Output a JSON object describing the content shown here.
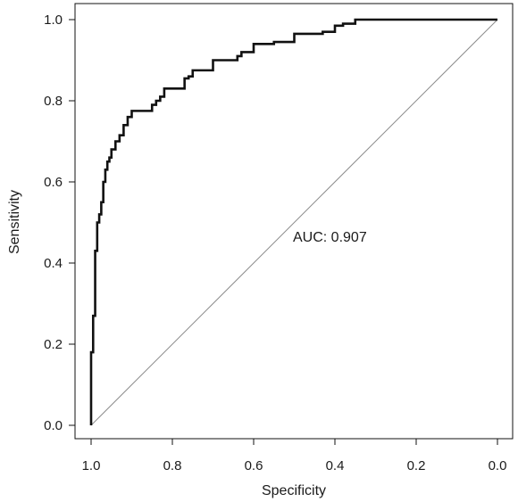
{
  "chart_data": {
    "type": "line",
    "xlabel": "Specificity",
    "ylabel": "Sensitivity",
    "xlim": [
      1.0,
      0.0
    ],
    "ylim": [
      0.0,
      1.0
    ],
    "x_ticks": [
      "1.0",
      "0.8",
      "0.6",
      "0.4",
      "0.2",
      "0.0"
    ],
    "y_ticks": [
      "0.0",
      "0.2",
      "0.4",
      "0.6",
      "0.8",
      "1.0"
    ],
    "grid": false,
    "legend": "none",
    "annotation": "AUC: 0.907",
    "reference_line": {
      "x": [
        1.0,
        0.0
      ],
      "y": [
        0.0,
        1.0
      ],
      "color": "#8c8c8c"
    },
    "series": [
      {
        "color": "#111111",
        "x": [
          1.0,
          1.0,
          0.995,
          0.995,
          0.99,
          0.99,
          0.985,
          0.985,
          0.98,
          0.98,
          0.975,
          0.975,
          0.97,
          0.97,
          0.965,
          0.965,
          0.96,
          0.96,
          0.955,
          0.955,
          0.95,
          0.95,
          0.94,
          0.94,
          0.93,
          0.93,
          0.92,
          0.92,
          0.91,
          0.91,
          0.9,
          0.9,
          0.89,
          0.89,
          0.85,
          0.85,
          0.84,
          0.84,
          0.83,
          0.83,
          0.82,
          0.82,
          0.8,
          0.8,
          0.77,
          0.77,
          0.76,
          0.76,
          0.75,
          0.75,
          0.7,
          0.7,
          0.64,
          0.64,
          0.63,
          0.63,
          0.6,
          0.6,
          0.55,
          0.55,
          0.5,
          0.5,
          0.43,
          0.43,
          0.4,
          0.4,
          0.38,
          0.38,
          0.35,
          0.35,
          0.0
        ],
        "y": [
          0.0,
          0.18,
          0.18,
          0.27,
          0.27,
          0.43,
          0.43,
          0.5,
          0.5,
          0.52,
          0.52,
          0.55,
          0.55,
          0.6,
          0.6,
          0.63,
          0.63,
          0.65,
          0.65,
          0.66,
          0.66,
          0.68,
          0.68,
          0.7,
          0.7,
          0.715,
          0.715,
          0.74,
          0.74,
          0.76,
          0.76,
          0.775,
          0.775,
          0.775,
          0.775,
          0.79,
          0.79,
          0.8,
          0.8,
          0.81,
          0.81,
          0.83,
          0.83,
          0.83,
          0.83,
          0.855,
          0.855,
          0.86,
          0.86,
          0.875,
          0.875,
          0.9,
          0.9,
          0.91,
          0.91,
          0.92,
          0.92,
          0.94,
          0.94,
          0.945,
          0.945,
          0.965,
          0.965,
          0.97,
          0.97,
          0.985,
          0.985,
          0.99,
          0.99,
          1.0,
          1.0
        ]
      }
    ]
  }
}
